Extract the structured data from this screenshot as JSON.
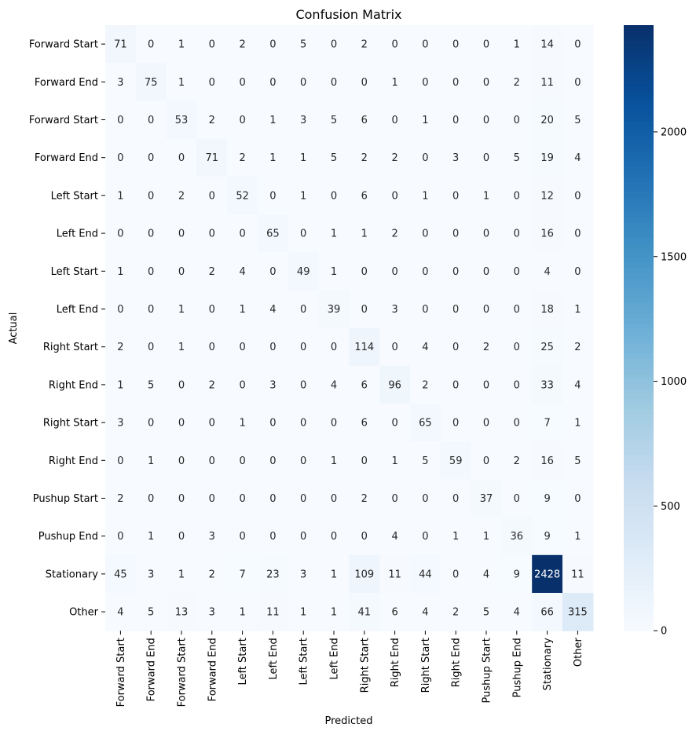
{
  "chart_data": {
    "type": "heatmap",
    "title": "Confusion Matrix",
    "xlabel": "Predicted",
    "ylabel": "Actual",
    "row_labels": [
      "Forward Start",
      "Forward End",
      "Forward Start",
      "Forward End",
      "Left Start",
      "Left End",
      "Left Start",
      "Left End",
      "Right Start",
      "Right End",
      "Right Start",
      "Right End",
      "Pushup Start",
      "Pushup End",
      "Stationary",
      "Other"
    ],
    "col_labels": [
      "Forward Start",
      "Forward End",
      "Forward Start",
      "Forward End",
      "Left Start",
      "Left End",
      "Left Start",
      "Left End",
      "Right Start",
      "Right End",
      "Right Start",
      "Right End",
      "Pushup Start",
      "Pushup End",
      "Stationary",
      "Other"
    ],
    "matrix": [
      [
        71,
        0,
        1,
        0,
        2,
        0,
        5,
        0,
        2,
        0,
        0,
        0,
        0,
        1,
        14,
        0
      ],
      [
        3,
        75,
        1,
        0,
        0,
        0,
        0,
        0,
        0,
        1,
        0,
        0,
        0,
        2,
        11,
        0
      ],
      [
        0,
        0,
        53,
        2,
        0,
        1,
        3,
        5,
        6,
        0,
        1,
        0,
        0,
        0,
        20,
        5
      ],
      [
        0,
        0,
        0,
        71,
        2,
        1,
        1,
        5,
        2,
        2,
        0,
        3,
        0,
        5,
        19,
        4
      ],
      [
        1,
        0,
        2,
        0,
        52,
        0,
        1,
        0,
        6,
        0,
        1,
        0,
        1,
        0,
        12,
        0
      ],
      [
        0,
        0,
        0,
        0,
        0,
        65,
        0,
        1,
        1,
        2,
        0,
        0,
        0,
        0,
        16,
        0
      ],
      [
        1,
        0,
        0,
        2,
        4,
        0,
        49,
        1,
        0,
        0,
        0,
        0,
        0,
        0,
        4,
        0
      ],
      [
        0,
        0,
        1,
        0,
        1,
        4,
        0,
        39,
        0,
        3,
        0,
        0,
        0,
        0,
        18,
        1
      ],
      [
        2,
        0,
        1,
        0,
        0,
        0,
        0,
        0,
        114,
        0,
        4,
        0,
        2,
        0,
        25,
        2
      ],
      [
        1,
        5,
        0,
        2,
        0,
        3,
        0,
        4,
        6,
        96,
        2,
        0,
        0,
        0,
        33,
        4
      ],
      [
        3,
        0,
        0,
        0,
        1,
        0,
        0,
        0,
        6,
        0,
        65,
        0,
        0,
        0,
        7,
        1
      ],
      [
        0,
        1,
        0,
        0,
        0,
        0,
        0,
        1,
        0,
        1,
        5,
        59,
        0,
        2,
        16,
        5
      ],
      [
        2,
        0,
        0,
        0,
        0,
        0,
        0,
        0,
        2,
        0,
        0,
        0,
        37,
        0,
        9,
        0
      ],
      [
        0,
        1,
        0,
        3,
        0,
        0,
        0,
        0,
        0,
        4,
        0,
        1,
        1,
        36,
        9,
        1
      ],
      [
        45,
        3,
        1,
        2,
        7,
        23,
        3,
        1,
        109,
        11,
        44,
        0,
        4,
        9,
        2428,
        11
      ],
      [
        4,
        5,
        13,
        3,
        1,
        11,
        1,
        1,
        41,
        6,
        4,
        2,
        5,
        4,
        66,
        315
      ]
    ],
    "colorbar": {
      "min": 0,
      "max": 2428,
      "ticks": [
        0,
        500,
        1000,
        1500,
        2000
      ],
      "colormap": "Blues"
    }
  }
}
